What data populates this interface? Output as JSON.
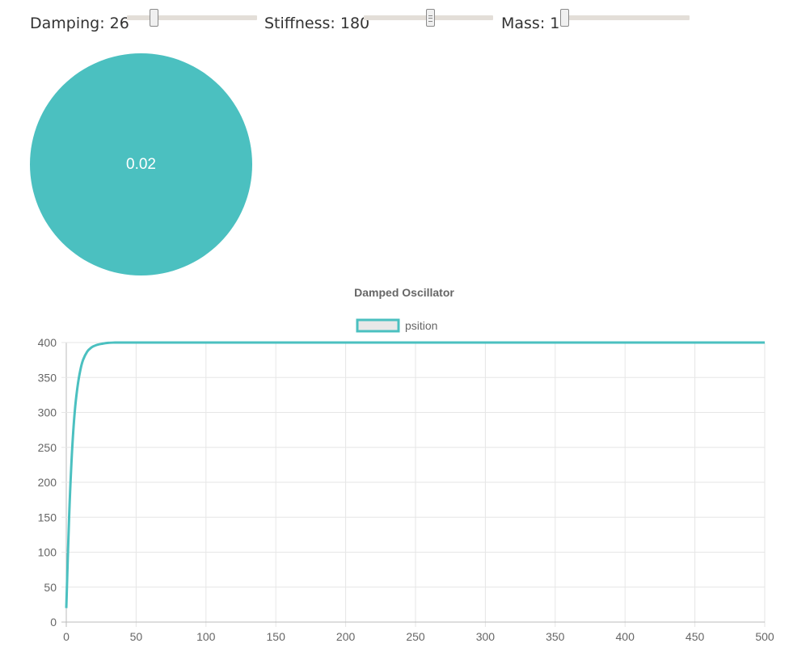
{
  "controls": {
    "damping": {
      "label": "Damping: 26",
      "value": 26,
      "min": 0,
      "max": 100
    },
    "stiffness": {
      "label": "Stiffness: 180",
      "value": 180,
      "min": 0,
      "max": 300
    },
    "mass": {
      "label": "Mass: 1",
      "value": 1,
      "min": 1,
      "max": 10
    }
  },
  "ball": {
    "value": "0.02",
    "color": "#4bc0c0"
  },
  "chart_data": {
    "type": "line",
    "title": "Damped Oscillator",
    "series": [
      {
        "name": "psition",
        "color": "#4bc0c0"
      }
    ],
    "x": [
      0,
      2,
      4,
      6,
      8,
      10,
      12,
      15,
      18,
      21,
      25,
      30,
      35,
      40,
      50,
      100,
      200,
      300,
      400,
      500
    ],
    "values": [
      20,
      150,
      240,
      300,
      336,
      360,
      375,
      387,
      393,
      396,
      398,
      399.5,
      400,
      400,
      400,
      400,
      400,
      400,
      400,
      400
    ],
    "xlim": [
      0,
      500
    ],
    "ylim": [
      0,
      400
    ],
    "xticks": [
      "0",
      "50",
      "100",
      "150",
      "200",
      "250",
      "300",
      "350",
      "400",
      "450",
      "500"
    ],
    "yticks": [
      "0",
      "50",
      "100",
      "150",
      "200",
      "250",
      "300",
      "350",
      "400"
    ],
    "grid": true,
    "legend": "top-center"
  }
}
